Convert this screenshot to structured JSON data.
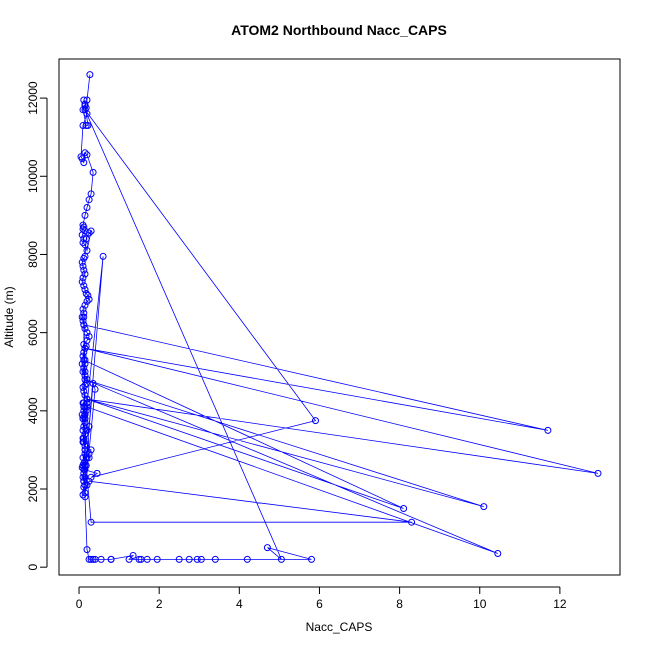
{
  "chart_data": {
    "type": "line",
    "title": "ATOM2 Northbound Nacc_CAPS",
    "xlabel": "Nacc_CAPS",
    "ylabel": "Altitude (m)",
    "xlim": [
      -0.5,
      13.5
    ],
    "ylim": [
      -200,
      13000
    ],
    "x_ticks": [
      0,
      2,
      4,
      6,
      8,
      10,
      12
    ],
    "y_ticks": [
      0,
      2000,
      4000,
      6000,
      8000,
      10000,
      12000
    ],
    "grid": false,
    "line_color": "#0000ff",
    "marker": "open-circle",
    "series": [
      {
        "x": [
          0.27,
          0.2,
          0.15,
          0.1,
          0.18,
          0.22,
          0.15,
          0.12,
          0.18,
          0.2,
          0.1,
          0.05,
          0.08,
          0.12,
          0.15,
          0.2,
          0.35,
          0.3,
          0.25,
          0.2,
          0.15,
          0.1,
          0.12,
          0.1,
          0.15,
          0.08,
          0.12,
          0.1,
          0.15,
          0.2,
          0.3,
          0.25,
          0.18,
          0.15,
          0.12,
          0.08,
          0.1,
          0.12,
          0.15,
          0.1,
          0.08,
          0.12,
          0.15,
          0.18,
          0.22,
          0.25,
          0.2,
          0.15,
          0.1,
          0.12,
          0.08,
          0.1,
          0.12,
          0.15,
          0.2,
          0.25,
          0.2,
          0.12,
          0.18,
          0.15,
          0.12,
          0.1,
          0.15,
          0.08,
          0.12,
          0.1,
          0.15,
          0.2,
          0.18,
          0.15,
          0.1,
          0.12,
          0.15,
          0.2,
          0.1,
          0.12,
          0.18,
          0.15,
          0.12,
          0.1,
          0.15,
          0.6,
          0.25,
          0.2,
          0.15,
          0.12,
          0.1,
          0.15,
          0.3,
          0.25,
          0.2,
          0.15,
          0.12,
          0.1,
          0.08,
          0.15,
          0.12,
          0.1,
          0.12,
          0.15,
          0.12,
          11.7,
          0.15,
          12.95,
          0.2,
          10.1,
          0.15,
          10.45,
          0.2,
          0.15,
          0.12,
          8.1,
          0.2,
          0.15,
          0.3,
          8.3,
          0.25,
          0.2,
          0.15,
          0.4,
          0.35,
          0.1,
          0.12,
          0.15,
          0.18,
          0.1,
          0.15,
          0.12,
          0.1,
          0.15,
          0.12,
          0.1,
          0.08,
          0.12,
          0.15,
          0.2,
          0.25,
          0.15,
          0.12,
          0.45,
          0.3,
          5.9,
          0.15,
          5.05,
          4.7,
          5.8,
          4.2,
          3.4,
          2.95,
          2.75,
          3.05,
          2.5,
          1.95,
          1.7,
          1.55,
          1.5,
          1.25,
          1.35,
          0.8,
          0.8,
          0.55,
          0.4,
          0.35,
          0.3,
          0.25,
          0.2,
          0.15,
          0.12,
          0.1,
          0.15,
          0.1,
          0.12,
          0.15,
          0.15,
          0.12
        ],
        "y": [
          12600,
          11950,
          11800,
          11700,
          11300,
          11300,
          11850,
          11950,
          11750,
          11600,
          11300,
          10500,
          10450,
          10350,
          10600,
          10550,
          10100,
          9550,
          9400,
          9200,
          9000,
          8750,
          8700,
          8650,
          8600,
          8500,
          8400,
          8300,
          8250,
          8100,
          8600,
          8550,
          8400,
          7950,
          7900,
          7800,
          7700,
          7600,
          7500,
          7400,
          7300,
          7200,
          7100,
          7000,
          6950,
          6850,
          6800,
          6700,
          6600,
          6500,
          6400,
          6300,
          6200,
          6100,
          6000,
          5900,
          5800,
          5700,
          5650,
          5600,
          5500,
          5400,
          5300,
          5200,
          5100,
          5000,
          4900,
          4800,
          4700,
          4650,
          4600,
          4500,
          4400,
          4300,
          4200,
          4100,
          4000,
          3900,
          3850,
          3800,
          3700,
          7950,
          3600,
          3500,
          3400,
          3300,
          3200,
          3100,
          3000,
          2900,
          2800,
          2700,
          2650,
          2600,
          2550,
          2500,
          2400,
          2300,
          2200,
          2100,
          6200,
          3500,
          5600,
          2400,
          4300,
          1550,
          4800,
          350,
          4100,
          3800,
          5300,
          1500,
          4300,
          2900,
          1150,
          1150,
          2200,
          2100,
          1900,
          4550,
          4700,
          1850,
          2050,
          2300,
          2600,
          2800,
          3000,
          3200,
          3300,
          3400,
          3600,
          3800,
          3900,
          4000,
          4100,
          4200,
          2800,
          2600,
          2500,
          2400,
          2300,
          3750,
          11700,
          200,
          500,
          200,
          200,
          200,
          200,
          200,
          200,
          200,
          200,
          200,
          200,
          200,
          200,
          300,
          200,
          200,
          200,
          200,
          200,
          200,
          200,
          450,
          1800,
          2200,
          2600,
          3000,
          3500,
          4200,
          5000,
          5200,
          6400
        ]
      }
    ]
  }
}
